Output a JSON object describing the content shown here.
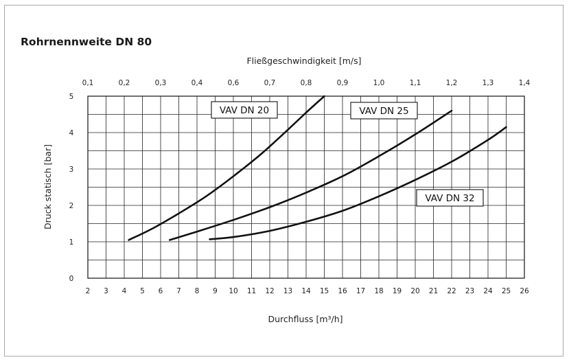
{
  "title": "Rohrnennweite DN 80",
  "chart_data": {
    "type": "line",
    "title": "Rohrnennweite DN 80",
    "xlabel": "Durchfluss [m³/h]",
    "ylabel": "Druck statisch [bar]",
    "x2label": "Fließgeschwindigkeit [m/s]",
    "xlim": [
      2,
      26
    ],
    "ylim": [
      0,
      5
    ],
    "x_ticks": [
      "2",
      "3",
      "4",
      "5",
      "6",
      "7",
      "8",
      "9",
      "10",
      "11",
      "12",
      "13",
      "14",
      "15",
      "16",
      "17",
      "18",
      "19",
      "20",
      "21",
      "22",
      "23",
      "24",
      "25",
      "26"
    ],
    "y_ticks": [
      "0",
      "1",
      "2",
      "3",
      "4",
      "5"
    ],
    "x2_ticks": [
      "0,1",
      "0,2",
      "0,3",
      "0,4",
      "0,6",
      "0,7",
      "0,8",
      "0,9",
      "1,0",
      "1,1",
      "1,2",
      "1,3",
      "1,4"
    ],
    "grid": true,
    "series": [
      {
        "name": "VAV DN 20",
        "x": [
          4.25,
          5.5,
          7.0,
          8.5,
          10.0,
          11.5,
          13.0,
          14.0,
          15.0
        ],
        "y": [
          1.05,
          1.35,
          1.78,
          2.25,
          2.8,
          3.4,
          4.08,
          4.55,
          5.0
        ]
      },
      {
        "name": "VAV DN 25",
        "x": [
          6.5,
          8.0,
          10.0,
          12.0,
          14.0,
          16.0,
          18.0,
          20.0,
          22.0
        ],
        "y": [
          1.05,
          1.28,
          1.6,
          1.95,
          2.35,
          2.8,
          3.35,
          3.95,
          4.6
        ]
      },
      {
        "name": "VAV DN 32",
        "x": [
          8.7,
          10.0,
          12.0,
          14.0,
          16.0,
          18.0,
          20.0,
          22.0,
          24.0,
          25.0
        ],
        "y": [
          1.07,
          1.13,
          1.3,
          1.55,
          1.85,
          2.25,
          2.7,
          3.2,
          3.8,
          4.15
        ]
      }
    ],
    "labels": [
      {
        "text": "VAV DN 20",
        "series": 0
      },
      {
        "text": "VAV DN 25",
        "series": 1
      },
      {
        "text": "VAV DN 32",
        "series": 2
      }
    ]
  }
}
